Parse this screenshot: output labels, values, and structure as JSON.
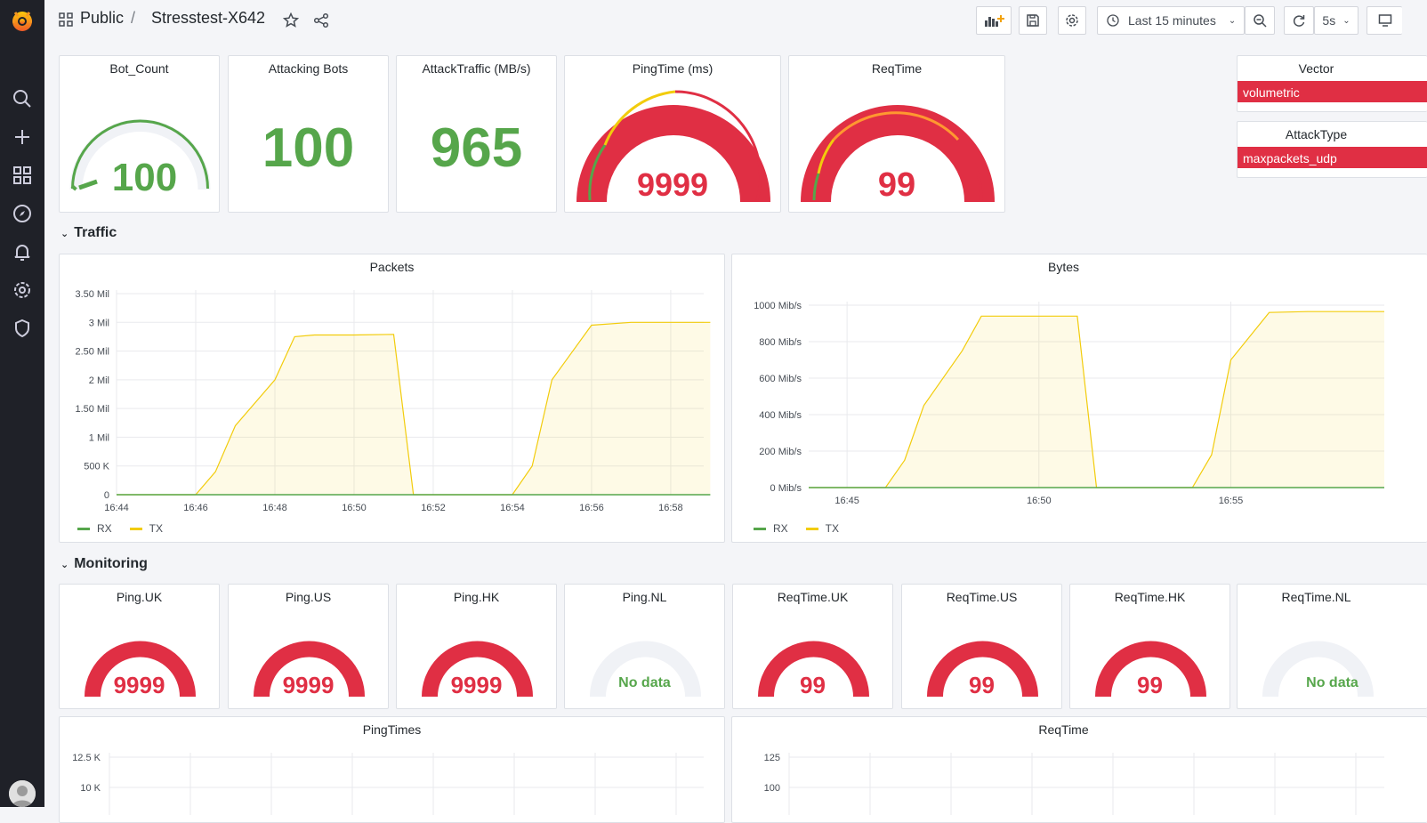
{
  "breadcrumb": {
    "folder": "Public",
    "separator": "/",
    "dashboard": "Stresstest-X642"
  },
  "toolbar": {
    "time_range": "Last 15 minutes",
    "refresh_interval": "5s"
  },
  "colors": {
    "green": "#56a64b",
    "red": "#e02f44",
    "yellow": "#f2cc0c",
    "orange": "#ff9830",
    "track": "#f0f2f6"
  },
  "top_panels": {
    "bot_count": {
      "title": "Bot_Count",
      "value": "100"
    },
    "attacking_bots": {
      "title": "Attacking Bots",
      "value": "100"
    },
    "attack_traffic": {
      "title": "AttackTraffic (MB/s)",
      "value": "965"
    },
    "ping_time": {
      "title": "PingTime (ms)",
      "value": "9999"
    },
    "req_time": {
      "title": "ReqTime",
      "value": "99"
    },
    "vector": {
      "title": "Vector",
      "value": "volumetric"
    },
    "attack_type": {
      "title": "AttackType",
      "value": "maxpackets_udp"
    }
  },
  "rows": {
    "traffic": "Traffic",
    "monitoring": "Monitoring"
  },
  "charts": {
    "packets": {
      "title": "Packets",
      "yticks": [
        "3.50 Mil",
        "3 Mil",
        "2.50 Mil",
        "2 Mil",
        "1.50 Mil",
        "1 Mil",
        "500 K",
        "0"
      ],
      "xticks": [
        "16:44",
        "16:46",
        "16:48",
        "16:50",
        "16:52",
        "16:54",
        "16:56",
        "16:58"
      ],
      "legend": [
        "RX",
        "TX"
      ]
    },
    "bytes": {
      "title": "Bytes",
      "yticks": [
        "1000 Mib/s",
        "800 Mib/s",
        "600 Mib/s",
        "400 Mib/s",
        "200 Mib/s",
        "0 Mib/s"
      ],
      "xticks": [
        "16:45",
        "16:50",
        "16:55"
      ],
      "legend": [
        "RX",
        "TX"
      ]
    },
    "pingtimes": {
      "title": "PingTimes",
      "yticks": [
        "12.5 K",
        "10 K"
      ]
    },
    "reqtime": {
      "title": "ReqTime",
      "yticks": [
        "125",
        "100"
      ]
    }
  },
  "monitoring": [
    {
      "title": "Ping.UK",
      "value": "9999"
    },
    {
      "title": "Ping.US",
      "value": "9999"
    },
    {
      "title": "Ping.HK",
      "value": "9999"
    },
    {
      "title": "Ping.NL",
      "value": "No data"
    },
    {
      "title": "ReqTime.UK",
      "value": "99"
    },
    {
      "title": "ReqTime.US",
      "value": "99"
    },
    {
      "title": "ReqTime.HK",
      "value": "99"
    },
    {
      "title": "ReqTime.NL",
      "value": "No data"
    }
  ],
  "chart_data": [
    {
      "type": "area",
      "title": "Packets",
      "x": [
        "16:44",
        "16:45",
        "16:46",
        "16:46:30",
        "16:47",
        "16:48",
        "16:48:30",
        "16:49",
        "16:50",
        "16:51",
        "16:51:30",
        "16:52",
        "16:53",
        "16:54",
        "16:54:30",
        "16:55",
        "16:56",
        "16:57",
        "16:58",
        "16:59"
      ],
      "ylim": [
        0,
        3500000
      ],
      "series": [
        {
          "name": "TX",
          "values": [
            0,
            0,
            0,
            400000,
            1200000,
            2000000,
            2750000,
            2780000,
            2780000,
            2790000,
            0,
            0,
            0,
            0,
            500000,
            2000000,
            2950000,
            3000000,
            3000000,
            3000000
          ]
        },
        {
          "name": "RX",
          "values": [
            0,
            0,
            0,
            0,
            0,
            0,
            0,
            0,
            0,
            0,
            0,
            0,
            0,
            0,
            0,
            0,
            0,
            0,
            0,
            0
          ]
        }
      ],
      "legend": [
        "RX",
        "TX"
      ]
    },
    {
      "type": "area",
      "title": "Bytes",
      "x": [
        "16:44",
        "16:45",
        "16:46",
        "16:46:30",
        "16:47",
        "16:48",
        "16:48:30",
        "16:49",
        "16:50",
        "16:51",
        "16:51:30",
        "16:52",
        "16:53",
        "16:54",
        "16:54:30",
        "16:55",
        "16:56",
        "16:57",
        "16:58",
        "16:59"
      ],
      "ylim": [
        0,
        1000
      ],
      "series": [
        {
          "name": "TX",
          "values": [
            0,
            0,
            0,
            150,
            450,
            750,
            940,
            940,
            940,
            940,
            0,
            0,
            0,
            0,
            180,
            700,
            960,
            965,
            965,
            965
          ]
        },
        {
          "name": "RX",
          "values": [
            0,
            0,
            0,
            0,
            0,
            0,
            0,
            0,
            0,
            0,
            0,
            0,
            0,
            0,
            0,
            0,
            0,
            0,
            0,
            0
          ]
        }
      ],
      "legend": [
        "RX",
        "TX"
      ]
    }
  ]
}
